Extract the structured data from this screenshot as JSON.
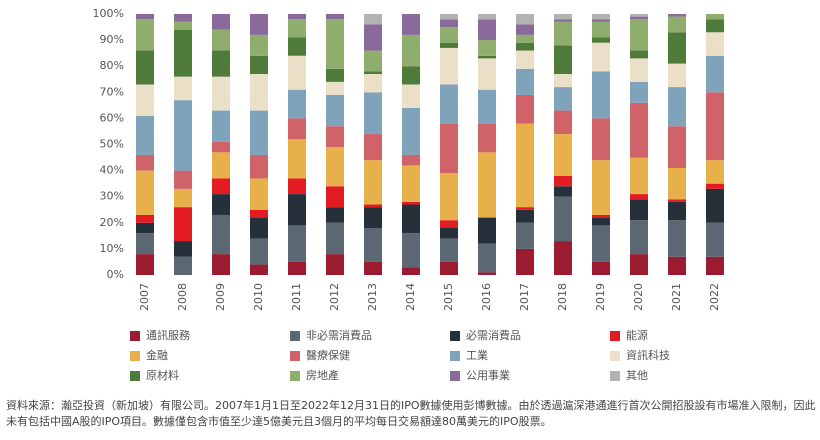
{
  "chart_data": {
    "type": "stacked_bar",
    "categories": [
      "2007",
      "2008",
      "2009",
      "2010",
      "2011",
      "2012",
      "2013",
      "2014",
      "2015",
      "2016",
      "2017",
      "2018",
      "2019",
      "2020",
      "2021",
      "2022"
    ],
    "ylim": [
      0,
      100
    ],
    "yticks": [
      {
        "value": 0,
        "label": "0%"
      },
      {
        "value": 10,
        "label": "10%"
      },
      {
        "value": 20,
        "label": "20%"
      },
      {
        "value": 30,
        "label": "30%"
      },
      {
        "value": 40,
        "label": "40%"
      },
      {
        "value": 50,
        "label": "50%"
      },
      {
        "value": 60,
        "label": "60%"
      },
      {
        "value": 70,
        "label": "70%"
      },
      {
        "value": 80,
        "label": "80%"
      },
      {
        "value": 90,
        "label": "90%"
      },
      {
        "value": 100,
        "label": "100%"
      }
    ],
    "series": [
      {
        "name": "通訊服務",
        "color": "#9b1b30",
        "values": [
          8,
          0,
          8,
          4,
          5,
          8,
          5,
          3,
          5,
          1,
          10,
          13,
          5,
          8,
          7,
          7
        ]
      },
      {
        "name": "非必需消費品",
        "color": "#5b6873",
        "values": [
          8,
          7,
          15,
          10,
          14,
          12,
          13,
          13,
          9,
          11,
          10,
          17,
          14,
          13,
          14,
          13
        ]
      },
      {
        "name": "必需消費品",
        "color": "#25303b",
        "values": [
          4,
          6,
          8,
          8,
          12,
          6,
          8,
          11,
          4,
          10,
          5,
          4,
          3,
          8,
          7,
          13
        ]
      },
      {
        "name": "能源",
        "color": "#e31b23",
        "values": [
          3,
          13,
          6,
          3,
          6,
          8,
          1,
          1,
          3,
          0,
          1,
          4,
          1,
          2,
          1,
          2
        ]
      },
      {
        "name": "金融",
        "color": "#e8b04a",
        "values": [
          17,
          7,
          10,
          12,
          15,
          15,
          17,
          14,
          18,
          25,
          32,
          16,
          21,
          14,
          12,
          9
        ]
      },
      {
        "name": "醫療保健",
        "color": "#d0636a",
        "values": [
          6,
          7,
          4,
          9,
          8,
          8,
          10,
          4,
          19,
          11,
          11,
          9,
          16,
          21,
          16,
          26
        ]
      },
      {
        "name": "工業",
        "color": "#7fa3ba",
        "values": [
          15,
          27,
          12,
          17,
          11,
          12,
          16,
          18,
          15,
          13,
          10,
          9,
          18,
          8,
          15,
          14
        ]
      },
      {
        "name": "資訊科技",
        "color": "#ebdfc8",
        "values": [
          12,
          9,
          13,
          14,
          13,
          5,
          7,
          9,
          14,
          12,
          7,
          5,
          11,
          9,
          9,
          9
        ]
      },
      {
        "name": "原材料",
        "color": "#4e7a3a",
        "values": [
          13,
          18,
          10,
          7,
          7,
          5,
          1,
          7,
          2,
          1,
          3,
          11,
          2,
          3,
          12,
          5
        ]
      },
      {
        "name": "房地產",
        "color": "#8fae6e",
        "values": [
          12,
          3,
          8,
          8,
          7,
          19,
          8,
          12,
          6,
          6,
          3,
          9,
          6,
          12,
          6,
          2
        ]
      },
      {
        "name": "公用事業",
        "color": "#8a6a9a",
        "values": [
          2,
          3,
          6,
          8,
          2,
          2,
          10,
          8,
          3,
          8,
          4,
          1,
          1,
          1,
          1,
          0
        ]
      },
      {
        "name": "其他",
        "color": "#b3b3b3",
        "values": [
          0,
          0,
          0,
          0,
          0,
          0,
          4,
          0,
          2,
          2,
          4,
          2,
          2,
          1,
          0,
          0
        ]
      }
    ],
    "source": "資料來源：瀚亞投資（新加坡）有限公司。2007年1月1日至2022年12月31日的IPO數據使用彭博數據。由於透過滬深港通進行首次公開招股設有市場准入限制，因此未有包括中國A股的IPO項目。數據僅包含市值至少達5億美元且3個月的平均每日交易額達80萬美元的IPO股票。"
  }
}
